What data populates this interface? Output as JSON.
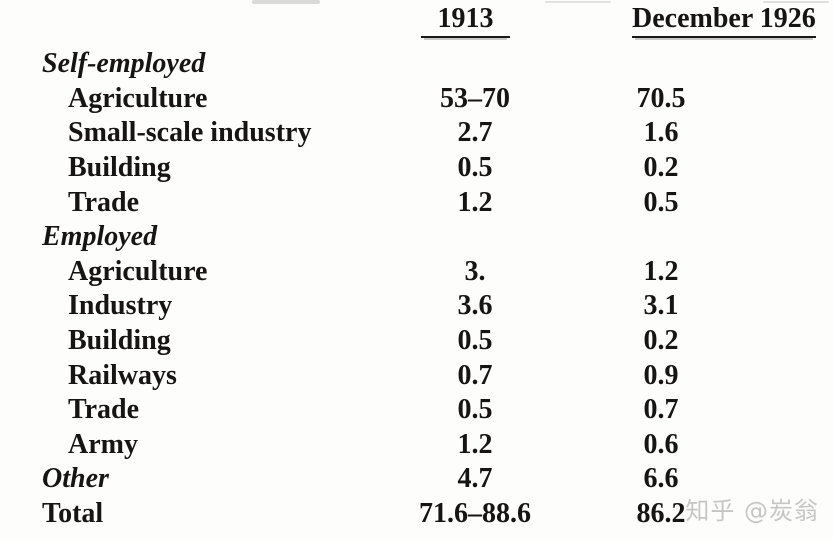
{
  "table": {
    "headers": {
      "col1913": "1913",
      "col1926": "December 1926"
    },
    "rows": [
      {
        "type": "section",
        "label": "Self-employed",
        "v1913": "",
        "v1926": ""
      },
      {
        "type": "item",
        "label": "Agriculture",
        "v1913": "53–70",
        "v1926": "70.5"
      },
      {
        "type": "item",
        "label": "Small-scale industry",
        "v1913": "2.7",
        "v1926": "1.6"
      },
      {
        "type": "item",
        "label": "Building",
        "v1913": "0.5",
        "v1926": "0.2"
      },
      {
        "type": "item",
        "label": "Trade",
        "v1913": "1.2",
        "v1926": "0.5"
      },
      {
        "type": "section",
        "label": "Employed",
        "v1913": "",
        "v1926": ""
      },
      {
        "type": "item",
        "label": "Agriculture",
        "v1913": "3.",
        "v1926": "1.2"
      },
      {
        "type": "item",
        "label": "Industry",
        "v1913": "3.6",
        "v1926": "3.1"
      },
      {
        "type": "item",
        "label": "Building",
        "v1913": "0.5",
        "v1926": "0.2"
      },
      {
        "type": "item",
        "label": "Railways",
        "v1913": "0.7",
        "v1926": "0.9"
      },
      {
        "type": "item",
        "label": "Trade",
        "v1913": "0.5",
        "v1926": "0.7"
      },
      {
        "type": "item",
        "label": "Army",
        "v1913": "1.2",
        "v1926": "0.6"
      },
      {
        "type": "section",
        "label": "Other",
        "v1913": "4.7",
        "v1926": "6.6"
      },
      {
        "type": "plain",
        "label": "Total",
        "v1913": "71.6–88.6",
        "v1926": "86.2"
      }
    ]
  },
  "watermark": {
    "text": "知乎 @炭翁",
    "color": "#c6c6c6"
  },
  "colors": {
    "ink": "#171513",
    "paper": "#fdfdfc"
  }
}
